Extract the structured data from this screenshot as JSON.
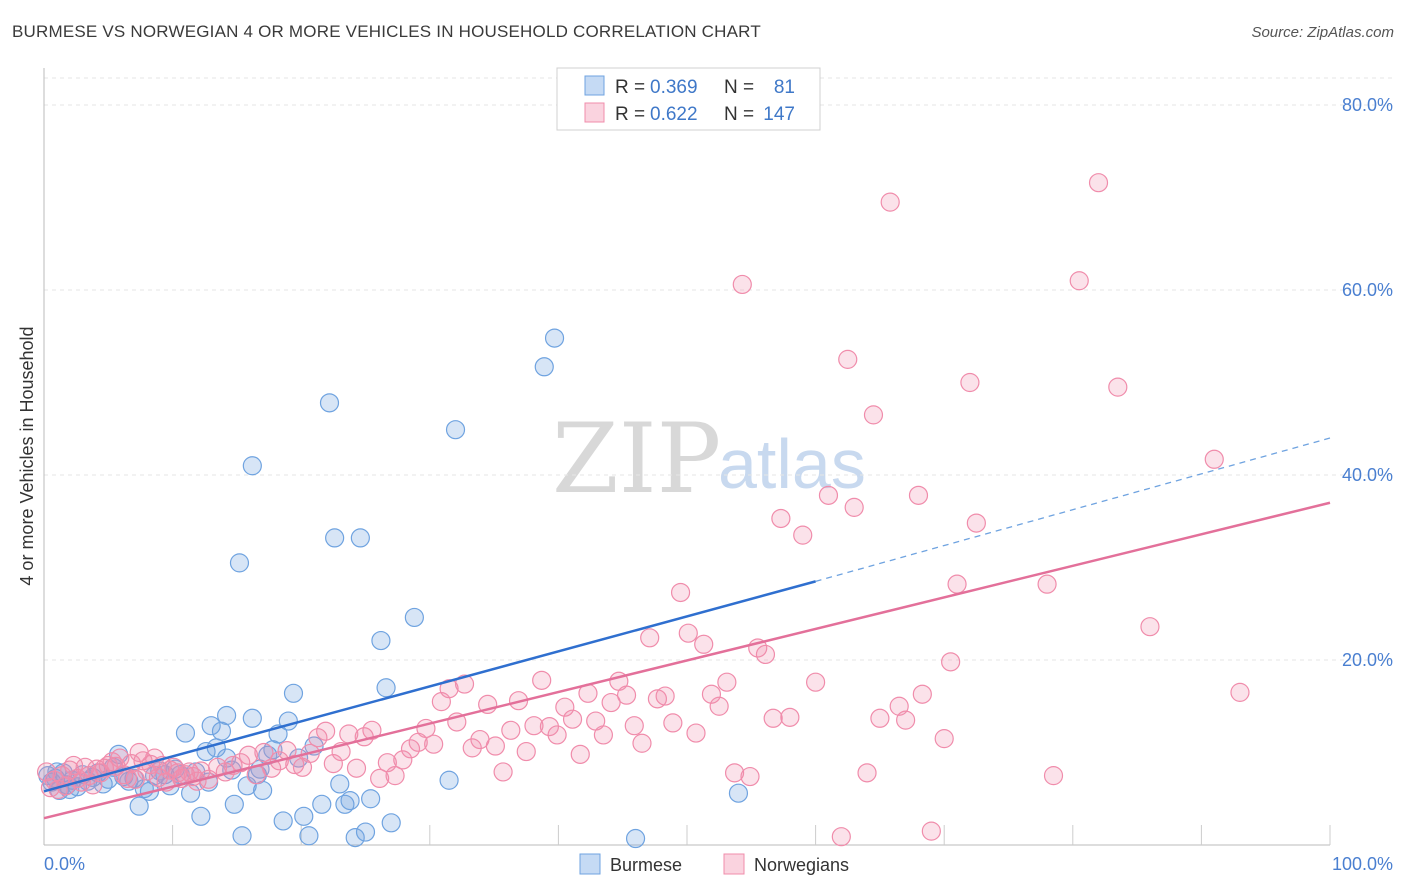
{
  "title": "BURMESE VS NORWEGIAN 4 OR MORE VEHICLES IN HOUSEHOLD CORRELATION CHART",
  "source": "Source: ZipAtlas.com",
  "watermark": {
    "zip": "ZIP",
    "atlas": "atlas"
  },
  "legend_top": [
    {
      "r_label": "R =",
      "r_value": "0.369",
      "n_label": "N =",
      "n_value": "81",
      "color": "#6fa3e0"
    },
    {
      "r_label": "R =",
      "r_value": "0.622",
      "n_label": "N =",
      "n_value": "147",
      "color": "#f08cab"
    }
  ],
  "chart_data": {
    "type": "scatter",
    "title": "BURMESE VS NORWEGIAN 4 OR MORE VEHICLES IN HOUSEHOLD CORRELATION CHART",
    "xlabel": "",
    "ylabel": "4 or more Vehicles in Household",
    "xlim": [
      0,
      100
    ],
    "ylim": [
      0,
      84
    ],
    "x_tick_labels": [
      "0.0%",
      "100.0%"
    ],
    "y_ticks": [
      20,
      40,
      60,
      80
    ],
    "y_tick_labels": [
      "20.0%",
      "40.0%",
      "60.0%",
      "80.0%"
    ],
    "grid": true,
    "legend_position": "bottom",
    "series": [
      {
        "name": "Burmese",
        "color": "#6fa3e0",
        "trend": {
          "x": [
            0,
            60
          ],
          "y": [
            5.8,
            28.5
          ],
          "dashed_x": [
            60,
            100
          ],
          "dashed_y": [
            28.5,
            44.0
          ]
        },
        "points": [
          [
            0.3,
            7.5
          ],
          [
            0.6,
            6.8
          ],
          [
            0.9,
            7.2
          ],
          [
            1.2,
            5.9
          ],
          [
            1.5,
            7.8
          ],
          [
            1.8,
            6.5
          ],
          [
            2.2,
            7.0
          ],
          [
            2.6,
            6.3
          ],
          [
            3.0,
            7.6
          ],
          [
            3.4,
            6.9
          ],
          [
            3.8,
            7.3
          ],
          [
            4.2,
            7.8
          ],
          [
            4.6,
            6.6
          ],
          [
            5.0,
            7.1
          ],
          [
            5.4,
            8.4
          ],
          [
            5.8,
            9.8
          ],
          [
            6.2,
            7.4
          ],
          [
            6.6,
            6.9
          ],
          [
            7.0,
            7.2
          ],
          [
            7.4,
            4.2
          ],
          [
            7.8,
            6.1
          ],
          [
            8.2,
            5.8
          ],
          [
            8.6,
            7.5
          ],
          [
            9.0,
            8.0
          ],
          [
            9.4,
            7.6
          ],
          [
            9.8,
            6.4
          ],
          [
            10.2,
            8.2
          ],
          [
            10.6,
            7.6
          ],
          [
            11.0,
            12.1
          ],
          [
            11.4,
            5.6
          ],
          [
            11.8,
            7.9
          ],
          [
            12.2,
            3.1
          ],
          [
            12.6,
            10.1
          ],
          [
            13.0,
            12.9
          ],
          [
            13.4,
            10.5
          ],
          [
            13.8,
            12.3
          ],
          [
            14.2,
            9.4
          ],
          [
            14.6,
            8.1
          ],
          [
            14.8,
            4.4
          ],
          [
            15.4,
            1.0
          ],
          [
            15.8,
            6.4
          ],
          [
            16.2,
            13.7
          ],
          [
            16.6,
            7.6
          ],
          [
            17.0,
            5.9
          ],
          [
            17.4,
            9.7
          ],
          [
            17.8,
            10.3
          ],
          [
            18.2,
            12.0
          ],
          [
            18.6,
            2.6
          ],
          [
            19.0,
            13.4
          ],
          [
            19.8,
            9.4
          ],
          [
            19.4,
            16.4
          ],
          [
            20.2,
            3.1
          ],
          [
            20.6,
            1.0
          ],
          [
            21.0,
            10.7
          ],
          [
            21.6,
            4.4
          ],
          [
            22.2,
            47.8
          ],
          [
            22.6,
            33.2
          ],
          [
            23.0,
            6.6
          ],
          [
            23.4,
            4.4
          ],
          [
            23.8,
            4.8
          ],
          [
            24.2,
            0.8
          ],
          [
            24.6,
            33.2
          ],
          [
            25.0,
            1.4
          ],
          [
            25.4,
            5.0
          ],
          [
            26.2,
            22.1
          ],
          [
            26.6,
            17.0
          ],
          [
            27.0,
            2.4
          ],
          [
            28.8,
            24.6
          ],
          [
            32.0,
            44.9
          ],
          [
            31.5,
            7.0
          ],
          [
            38.9,
            51.7
          ],
          [
            39.7,
            54.8
          ],
          [
            46.0,
            0.7
          ],
          [
            54.0,
            5.6
          ],
          [
            15.2,
            30.5
          ],
          [
            16.2,
            41.0
          ],
          [
            14.2,
            14.0
          ],
          [
            1.0,
            7.9
          ],
          [
            2.0,
            6.0
          ],
          [
            12.8,
            6.8
          ],
          [
            16.8,
            8.2
          ]
        ]
      },
      {
        "name": "Norwegians",
        "color": "#f08cab",
        "trend": {
          "x": [
            0,
            100
          ],
          "y": [
            2.9,
            37.0
          ]
        },
        "points": [
          [
            0.2,
            7.9
          ],
          [
            0.5,
            6.2
          ],
          [
            0.8,
            7.0
          ],
          [
            1.1,
            6.0
          ],
          [
            1.4,
            7.5
          ],
          [
            1.7,
            6.4
          ],
          [
            2.0,
            8.1
          ],
          [
            2.3,
            8.6
          ],
          [
            2.6,
            7.2
          ],
          [
            2.9,
            6.8
          ],
          [
            3.2,
            8.4
          ],
          [
            3.5,
            7.5
          ],
          [
            3.8,
            6.5
          ],
          [
            4.1,
            8.2
          ],
          [
            4.4,
            7.8
          ],
          [
            4.7,
            8.3
          ],
          [
            5.0,
            8.6
          ],
          [
            5.3,
            9.0
          ],
          [
            5.6,
            8.5
          ],
          [
            5.9,
            9.4
          ],
          [
            6.2,
            7.6
          ],
          [
            6.5,
            7.2
          ],
          [
            6.8,
            8.8
          ],
          [
            7.1,
            7.1
          ],
          [
            7.4,
            10.0
          ],
          [
            7.7,
            9.1
          ],
          [
            8.0,
            8.0
          ],
          [
            8.3,
            8.7
          ],
          [
            8.6,
            9.4
          ],
          [
            8.9,
            7.3
          ],
          [
            9.2,
            8.6
          ],
          [
            9.5,
            6.8
          ],
          [
            9.8,
            8.1
          ],
          [
            10.1,
            8.4
          ],
          [
            10.4,
            7.8
          ],
          [
            10.7,
            7.2
          ],
          [
            11.0,
            7.6
          ],
          [
            11.3,
            7.9
          ],
          [
            11.6,
            7.4
          ],
          [
            11.9,
            6.9
          ],
          [
            12.2,
            8.0
          ],
          [
            12.8,
            7.1
          ],
          [
            13.5,
            8.4
          ],
          [
            14.1,
            7.9
          ],
          [
            14.7,
            8.6
          ],
          [
            15.3,
            8.9
          ],
          [
            15.9,
            9.7
          ],
          [
            16.5,
            7.6
          ],
          [
            17.1,
            10.0
          ],
          [
            17.7,
            8.3
          ],
          [
            18.3,
            9.1
          ],
          [
            18.9,
            10.2
          ],
          [
            19.5,
            8.7
          ],
          [
            20.1,
            8.4
          ],
          [
            20.7,
            9.9
          ],
          [
            21.3,
            11.6
          ],
          [
            21.9,
            12.3
          ],
          [
            22.5,
            8.8
          ],
          [
            23.1,
            10.1
          ],
          [
            23.7,
            12.0
          ],
          [
            24.3,
            8.3
          ],
          [
            24.9,
            11.7
          ],
          [
            25.5,
            12.4
          ],
          [
            26.1,
            7.2
          ],
          [
            26.7,
            8.9
          ],
          [
            27.3,
            7.5
          ],
          [
            27.9,
            9.2
          ],
          [
            28.5,
            10.4
          ],
          [
            29.1,
            11.1
          ],
          [
            29.7,
            12.6
          ],
          [
            30.3,
            10.9
          ],
          [
            30.9,
            15.5
          ],
          [
            31.5,
            16.9
          ],
          [
            32.1,
            13.3
          ],
          [
            32.7,
            17.4
          ],
          [
            33.3,
            10.5
          ],
          [
            33.9,
            11.4
          ],
          [
            34.5,
            15.2
          ],
          [
            35.1,
            10.7
          ],
          [
            35.7,
            7.9
          ],
          [
            36.3,
            12.4
          ],
          [
            36.9,
            15.6
          ],
          [
            37.5,
            10.1
          ],
          [
            38.1,
            12.9
          ],
          [
            38.7,
            17.8
          ],
          [
            39.3,
            12.8
          ],
          [
            39.9,
            11.9
          ],
          [
            40.5,
            14.9
          ],
          [
            41.1,
            13.6
          ],
          [
            41.7,
            9.8
          ],
          [
            42.3,
            16.4
          ],
          [
            42.9,
            13.4
          ],
          [
            43.5,
            11.9
          ],
          [
            44.1,
            15.4
          ],
          [
            44.7,
            17.7
          ],
          [
            45.3,
            16.2
          ],
          [
            45.9,
            12.9
          ],
          [
            46.5,
            11.0
          ],
          [
            47.1,
            22.4
          ],
          [
            47.7,
            15.8
          ],
          [
            48.3,
            16.1
          ],
          [
            48.9,
            13.2
          ],
          [
            49.5,
            27.3
          ],
          [
            50.1,
            22.9
          ],
          [
            50.7,
            12.1
          ],
          [
            51.3,
            21.7
          ],
          [
            51.9,
            16.3
          ],
          [
            52.5,
            15.0
          ],
          [
            53.1,
            17.6
          ],
          [
            53.7,
            7.8
          ],
          [
            54.3,
            60.6
          ],
          [
            54.9,
            7.4
          ],
          [
            55.5,
            21.3
          ],
          [
            56.1,
            20.6
          ],
          [
            56.7,
            13.7
          ],
          [
            57.3,
            35.3
          ],
          [
            58.0,
            13.8
          ],
          [
            59.0,
            33.5
          ],
          [
            60.0,
            17.6
          ],
          [
            61.0,
            37.8
          ],
          [
            62.0,
            0.9
          ],
          [
            62.5,
            52.5
          ],
          [
            63.0,
            36.5
          ],
          [
            64.0,
            7.8
          ],
          [
            64.5,
            46.5
          ],
          [
            65.0,
            13.7
          ],
          [
            65.8,
            69.5
          ],
          [
            66.5,
            15.0
          ],
          [
            67.0,
            13.5
          ],
          [
            68.0,
            37.8
          ],
          [
            68.3,
            16.3
          ],
          [
            69.0,
            1.5
          ],
          [
            70.0,
            11.5
          ],
          [
            70.5,
            19.8
          ],
          [
            71.0,
            28.2
          ],
          [
            72.0,
            50.0
          ],
          [
            72.5,
            34.8
          ],
          [
            78.0,
            28.2
          ],
          [
            78.5,
            7.5
          ],
          [
            80.5,
            61.0
          ],
          [
            82.0,
            71.6
          ],
          [
            83.5,
            49.5
          ],
          [
            86.0,
            23.6
          ],
          [
            91.0,
            41.7
          ],
          [
            93.0,
            16.5
          ]
        ]
      }
    ]
  },
  "legend_bottom": [
    {
      "label": "Burmese",
      "color": "#6fa3e0"
    },
    {
      "label": "Norwegians",
      "color": "#f08cab"
    }
  ]
}
